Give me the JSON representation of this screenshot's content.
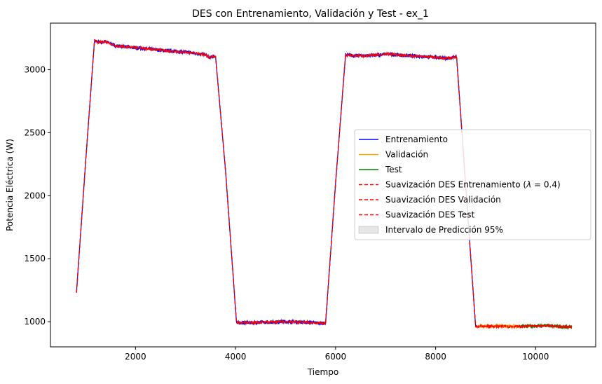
{
  "chart_data": {
    "type": "line",
    "title": "DES con Entrenamiento, Validación y Test - ex_1",
    "xlabel": "Tiempo",
    "ylabel": "Potencia Eléctrica (W)",
    "xlim": [
      300,
      11200
    ],
    "ylim": [
      800,
      3370
    ],
    "xticks": [
      2000,
      4000,
      6000,
      8000,
      10000
    ],
    "yticks": [
      1000,
      1500,
      2000,
      2500,
      3000
    ],
    "grid": false,
    "legend_position": "center-right",
    "legend": [
      {
        "label": "Entrenamiento",
        "color": "#0000ff",
        "style": "solid"
      },
      {
        "label": "Validación",
        "color": "#ffa500",
        "style": "solid"
      },
      {
        "label": "Test",
        "color": "#008000",
        "style": "solid"
      },
      {
        "label": "Suavización DES Entrenamiento ($\\lambda = 0.4$)",
        "label_prefix": "Suavización DES Entrenamiento (",
        "label_lambda": "λ",
        "label_suffix": " = 0.4)",
        "color": "#ff0000",
        "style": "dashed"
      },
      {
        "label": "Suavización DES Validación",
        "color": "#ff0000",
        "style": "dashed"
      },
      {
        "label": "Suavización DES Test",
        "color": "#ff0000",
        "style": "dashed"
      },
      {
        "label": "Intervalo de Predicción 95%",
        "color": "#808080",
        "style": "patch"
      }
    ],
    "series": [
      {
        "name": "Entrenamiento",
        "color": "#0000ff",
        "points": [
          [
            820,
            1230
          ],
          [
            1000,
            2250
          ],
          [
            1180,
            3230
          ],
          [
            1300,
            3215
          ],
          [
            1400,
            3225
          ],
          [
            1600,
            3190
          ],
          [
            2000,
            3175
          ],
          [
            2500,
            3155
          ],
          [
            3000,
            3140
          ],
          [
            3400,
            3120
          ],
          [
            3480,
            3095
          ],
          [
            3600,
            3110
          ],
          [
            3800,
            2200
          ],
          [
            4020,
            990
          ],
          [
            4500,
            995
          ],
          [
            5000,
            1000
          ],
          [
            5500,
            995
          ],
          [
            5800,
            985
          ],
          [
            6000,
            2100
          ],
          [
            6200,
            3120
          ],
          [
            6400,
            3110
          ],
          [
            6800,
            3115
          ],
          [
            7000,
            3125
          ],
          [
            7500,
            3110
          ],
          [
            8000,
            3100
          ],
          [
            8200,
            3090
          ],
          [
            8420,
            3100
          ],
          [
            8800,
            960
          ]
        ]
      },
      {
        "name": "Validación",
        "color": "#ffa500",
        "points": [
          [
            8800,
            960
          ],
          [
            9200,
            965
          ],
          [
            9700,
            960
          ]
        ]
      },
      {
        "name": "Test",
        "color": "#008000",
        "points": [
          [
            9700,
            962
          ],
          [
            10000,
            965
          ],
          [
            10300,
            970
          ],
          [
            10500,
            960
          ],
          [
            10720,
            958
          ]
        ]
      }
    ]
  }
}
